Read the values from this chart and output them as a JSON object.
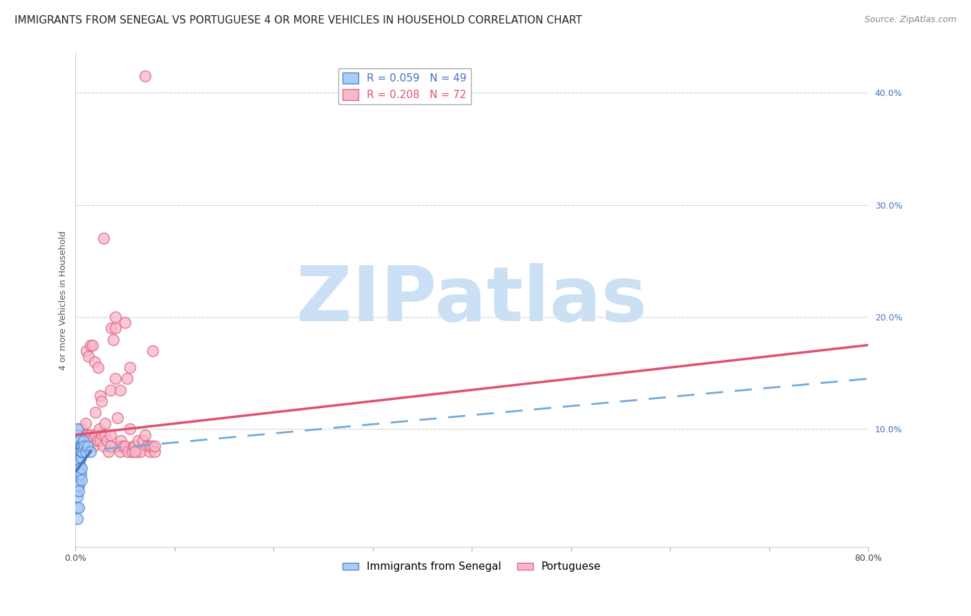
{
  "title": "IMMIGRANTS FROM SENEGAL VS PORTUGUESE 4 OR MORE VEHICLES IN HOUSEHOLD CORRELATION CHART",
  "source": "Source: ZipAtlas.com",
  "ylabel": "4 or more Vehicles in Household",
  "xlim": [
    0.0,
    0.8
  ],
  "ylim": [
    -0.005,
    0.435
  ],
  "xticks": [
    0.0,
    0.1,
    0.2,
    0.3,
    0.4,
    0.5,
    0.6,
    0.7,
    0.8
  ],
  "yticks_right": [
    0.0,
    0.1,
    0.2,
    0.3,
    0.4
  ],
  "series1_color": "#aaccf8",
  "series1_edge": "#5588cc",
  "series2_color": "#f8b8cc",
  "series2_edge": "#e06880",
  "trend_blue_solid_color": "#4472c4",
  "trend_blue_dash_color": "#70aadd",
  "trend_pink_color": "#e05070",
  "watermark_color": "#cce0f5",
  "watermark_text": "ZIPatlas",
  "legend_label1": "R = 0.059   N = 49",
  "legend_label2": "R = 0.208   N = 72",
  "bottom_label1": "Immigrants from Senegal",
  "bottom_label2": "Portuguese",
  "title_fontsize": 11,
  "axis_label_fontsize": 9,
  "tick_fontsize": 9,
  "senegal_x": [
    0.001,
    0.001,
    0.001,
    0.001,
    0.001,
    0.002,
    0.002,
    0.002,
    0.002,
    0.002,
    0.002,
    0.002,
    0.002,
    0.002,
    0.002,
    0.002,
    0.002,
    0.003,
    0.003,
    0.003,
    0.003,
    0.003,
    0.003,
    0.003,
    0.003,
    0.003,
    0.003,
    0.003,
    0.004,
    0.004,
    0.004,
    0.004,
    0.004,
    0.004,
    0.005,
    0.005,
    0.005,
    0.005,
    0.006,
    0.006,
    0.006,
    0.006,
    0.007,
    0.007,
    0.008,
    0.009,
    0.01,
    0.012,
    0.015
  ],
  "senegal_y": [
    0.06,
    0.045,
    0.075,
    0.03,
    0.055,
    0.085,
    0.095,
    0.08,
    0.1,
    0.09,
    0.07,
    0.06,
    0.075,
    0.055,
    0.05,
    0.04,
    0.02,
    0.085,
    0.09,
    0.08,
    0.075,
    0.07,
    0.065,
    0.06,
    0.055,
    0.05,
    0.045,
    0.03,
    0.09,
    0.085,
    0.08,
    0.07,
    0.065,
    0.06,
    0.085,
    0.08,
    0.075,
    0.06,
    0.085,
    0.08,
    0.065,
    0.055,
    0.085,
    0.08,
    0.09,
    0.085,
    0.08,
    0.085,
    0.08
  ],
  "portuguese_x": [
    0.002,
    0.003,
    0.004,
    0.005,
    0.006,
    0.007,
    0.008,
    0.009,
    0.01,
    0.01,
    0.011,
    0.012,
    0.013,
    0.014,
    0.015,
    0.015,
    0.016,
    0.017,
    0.018,
    0.019,
    0.02,
    0.02,
    0.022,
    0.023,
    0.024,
    0.025,
    0.025,
    0.026,
    0.027,
    0.028,
    0.03,
    0.03,
    0.032,
    0.033,
    0.035,
    0.035,
    0.036,
    0.038,
    0.04,
    0.04,
    0.042,
    0.043,
    0.045,
    0.045,
    0.046,
    0.048,
    0.05,
    0.05,
    0.052,
    0.053,
    0.055,
    0.055,
    0.057,
    0.058,
    0.06,
    0.062,
    0.063,
    0.065,
    0.068,
    0.07,
    0.072,
    0.075,
    0.075,
    0.077,
    0.078,
    0.08,
    0.08,
    0.028,
    0.035,
    0.04,
    0.06,
    0.07
  ],
  "portuguese_y": [
    0.095,
    0.1,
    0.095,
    0.09,
    0.1,
    0.095,
    0.09,
    0.095,
    0.085,
    0.105,
    0.17,
    0.095,
    0.165,
    0.09,
    0.175,
    0.095,
    0.09,
    0.175,
    0.085,
    0.16,
    0.115,
    0.095,
    0.09,
    0.155,
    0.1,
    0.13,
    0.09,
    0.125,
    0.095,
    0.085,
    0.095,
    0.105,
    0.09,
    0.08,
    0.095,
    0.135,
    0.19,
    0.18,
    0.145,
    0.2,
    0.11,
    0.085,
    0.135,
    0.08,
    0.09,
    0.085,
    0.195,
    0.085,
    0.145,
    0.08,
    0.1,
    0.155,
    0.08,
    0.085,
    0.085,
    0.08,
    0.09,
    0.08,
    0.09,
    0.095,
    0.085,
    0.08,
    0.085,
    0.085,
    0.17,
    0.08,
    0.085,
    0.27,
    0.085,
    0.19,
    0.08,
    0.415
  ],
  "trend_pink_x0": 0.0,
  "trend_pink_y0": 0.095,
  "trend_pink_x1": 0.8,
  "trend_pink_y1": 0.175,
  "trend_blue_dash_x0": 0.0,
  "trend_blue_dash_y0": 0.08,
  "trend_blue_dash_x1": 0.8,
  "trend_blue_dash_y1": 0.145,
  "trend_blue_solid_x0": 0.001,
  "trend_blue_solid_y0": 0.063,
  "trend_blue_solid_x1": 0.015,
  "trend_blue_solid_y1": 0.08
}
